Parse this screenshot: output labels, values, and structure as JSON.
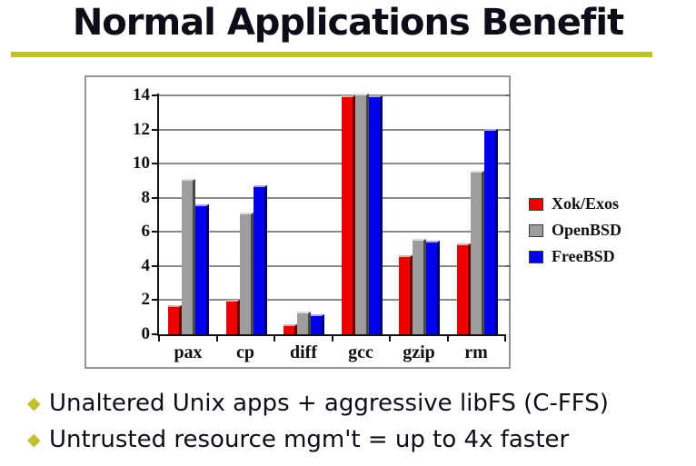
{
  "slide": {
    "title": "Normal Applications Benefit",
    "accent_color": "#c0c032",
    "bullet_marker": "◆",
    "bullets": [
      "Unaltered Unix apps + aggressive libFS (C-FFS)",
      "Untrusted resource mgm't = up to 4x faster"
    ]
  },
  "chart_data": {
    "type": "bar",
    "title": "",
    "xlabel": "",
    "ylabel": "",
    "categories": [
      "pax",
      "cp",
      "diff",
      "gcc",
      "gzip",
      "rm"
    ],
    "series": [
      {
        "name": "Xok/Exos",
        "color": "#ee0000",
        "values": [
          1.6,
          1.9,
          0.5,
          13.9,
          4.5,
          5.2
        ]
      },
      {
        "name": "OpenBSD",
        "color": "#9d9d9d",
        "values": [
          9.0,
          7.0,
          1.2,
          14.0,
          5.5,
          9.5
        ]
      },
      {
        "name": "FreeBSD",
        "color": "#0000ee",
        "values": [
          7.5,
          8.6,
          1.05,
          13.9,
          5.4,
          11.9
        ]
      }
    ],
    "ylim": [
      0,
      14
    ],
    "yticks": [
      0,
      2,
      4,
      6,
      8,
      10,
      12,
      14
    ],
    "grid": true,
    "legend_position": "right"
  }
}
